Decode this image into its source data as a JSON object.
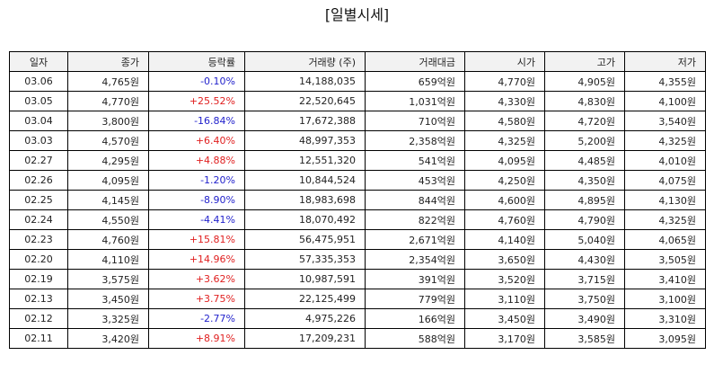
{
  "title": "[일별시세]",
  "columns": [
    "일자",
    "종가",
    "등락률",
    "거래량 (주)",
    "거래대금",
    "시가",
    "고가",
    "저가"
  ],
  "colors": {
    "up": "#e02020",
    "down": "#2222cc"
  },
  "rows": [
    [
      "03.06",
      "4,765원",
      "-0.10%",
      "14,188,035",
      "659억원",
      "4,770원",
      "4,905원",
      "4,355원"
    ],
    [
      "03.05",
      "4,770원",
      "+25.52%",
      "22,520,645",
      "1,031억원",
      "4,330원",
      "4,830원",
      "4,100원"
    ],
    [
      "03.04",
      "3,800원",
      "-16.84%",
      "17,672,388",
      "710억원",
      "4,580원",
      "4,720원",
      "3,540원"
    ],
    [
      "03.03",
      "4,570원",
      "+6.40%",
      "48,997,353",
      "2,358억원",
      "4,325원",
      "5,200원",
      "4,325원"
    ],
    [
      "02.27",
      "4,295원",
      "+4.88%",
      "12,551,320",
      "541억원",
      "4,095원",
      "4,485원",
      "4,010원"
    ],
    [
      "02.26",
      "4,095원",
      "-1.20%",
      "10,844,524",
      "453억원",
      "4,250원",
      "4,350원",
      "4,075원"
    ],
    [
      "02.25",
      "4,145원",
      "-8.90%",
      "18,983,698",
      "844억원",
      "4,600원",
      "4,895원",
      "4,130원"
    ],
    [
      "02.24",
      "4,550원",
      "-4.41%",
      "18,070,492",
      "822억원",
      "4,760원",
      "4,790원",
      "4,325원"
    ],
    [
      "02.23",
      "4,760원",
      "+15.81%",
      "56,475,951",
      "2,671억원",
      "4,140원",
      "5,040원",
      "4,065원"
    ],
    [
      "02.20",
      "4,110원",
      "+14.96%",
      "57,335,353",
      "2,354억원",
      "3,650원",
      "4,430원",
      "3,505원"
    ],
    [
      "02.19",
      "3,575원",
      "+3.62%",
      "10,987,591",
      "391억원",
      "3,520원",
      "3,715원",
      "3,410원"
    ],
    [
      "02.13",
      "3,450원",
      "+3.75%",
      "22,125,499",
      "779억원",
      "3,110원",
      "3,750원",
      "3,100원"
    ],
    [
      "02.12",
      "3,325원",
      "-2.77%",
      "4,975,226",
      "166억원",
      "3,450원",
      "3,490원",
      "3,310원"
    ],
    [
      "02.11",
      "3,420원",
      "+8.91%",
      "17,209,231",
      "588억원",
      "3,170원",
      "3,585원",
      "3,095원"
    ]
  ]
}
